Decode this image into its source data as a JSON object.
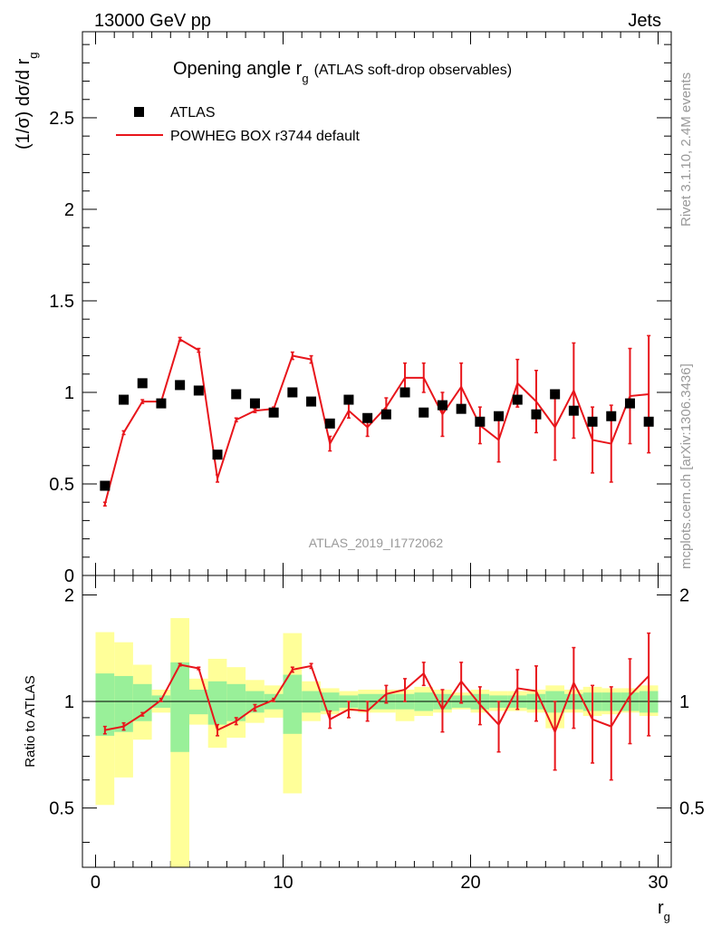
{
  "header": {
    "energy_label": "13000 GeV pp",
    "category_label": "Jets"
  },
  "side_text": {
    "rivet_label": "Rivet 3.1.10,  2.4M events",
    "mcplots_label": "mcplots.cern.ch [arXiv:1306.3436]"
  },
  "colors": {
    "data": "#000000",
    "mc": "#e8151b",
    "band_inner": "#99f099",
    "band_outer": "#ffff99",
    "watermark": "#999999"
  },
  "chart_data": [
    {
      "type": "scatter",
      "title_main": "Opening angle r",
      "title_sub": "g",
      "title_rest": "(ATLAS soft-drop observables)",
      "ylabel_main": "(1/σ) dσ/d r",
      "ylabel_sub": "g",
      "xlabel_main": "r",
      "xlabel_sub": "g",
      "analysis_label": "ATLAS_2019_I1772062",
      "xlim": [
        -0.7,
        30.7
      ],
      "ylim": [
        0,
        2.97
      ],
      "yticks": [
        0,
        0.5,
        1,
        1.5,
        2,
        2.5
      ],
      "ytick_labels": [
        "0",
        "0.5",
        "1",
        "1.5",
        "2",
        "2.5"
      ],
      "legend": [
        {
          "label": "ATLAS",
          "kind": "marker"
        },
        {
          "label": "POWHEG BOX r3744 default",
          "kind": "line"
        }
      ],
      "series": [
        {
          "name": "ATLAS",
          "x": [
            0.5,
            1.5,
            2.5,
            3.5,
            4.5,
            5.5,
            6.5,
            7.5,
            8.5,
            9.5,
            10.5,
            11.5,
            12.5,
            13.5,
            14.5,
            15.5,
            16.5,
            17.5,
            18.5,
            19.5,
            20.5,
            21.5,
            22.5,
            23.5,
            24.5,
            25.5,
            26.5,
            27.5,
            28.5,
            29.5
          ],
          "values": [
            0.49,
            0.96,
            1.05,
            0.94,
            1.04,
            1.01,
            0.66,
            0.99,
            0.94,
            0.89,
            1.0,
            0.95,
            0.83,
            0.96,
            0.86,
            0.88,
            1.0,
            0.89,
            0.93,
            0.91,
            0.84,
            0.87,
            0.96,
            0.88,
            0.99,
            0.9,
            0.84,
            0.87,
            0.94,
            0.84
          ]
        },
        {
          "name": "POWHEG BOX r3744 default",
          "x": [
            0.5,
            1.5,
            2.5,
            3.5,
            4.5,
            5.5,
            6.5,
            7.5,
            8.5,
            9.5,
            10.5,
            11.5,
            12.5,
            13.5,
            14.5,
            15.5,
            16.5,
            17.5,
            18.5,
            19.5,
            20.5,
            21.5,
            22.5,
            23.5,
            24.5,
            25.5,
            26.5,
            27.5,
            28.5,
            29.5
          ],
          "values": [
            0.39,
            0.78,
            0.95,
            0.95,
            1.29,
            1.23,
            0.53,
            0.85,
            0.9,
            0.91,
            1.2,
            1.18,
            0.72,
            0.9,
            0.81,
            0.92,
            1.08,
            1.08,
            0.88,
            1.03,
            0.82,
            0.74,
            1.05,
            0.95,
            0.81,
            1.01,
            0.74,
            0.72,
            0.98,
            0.99
          ],
          "errors": [
            0.01,
            0.01,
            0.01,
            0.01,
            0.01,
            0.01,
            0.02,
            0.01,
            0.01,
            0.01,
            0.02,
            0.02,
            0.04,
            0.04,
            0.05,
            0.05,
            0.08,
            0.08,
            0.12,
            0.13,
            0.1,
            0.12,
            0.13,
            0.17,
            0.18,
            0.26,
            0.18,
            0.21,
            0.26,
            0.32
          ]
        }
      ]
    },
    {
      "type": "ratio",
      "ylabel": "Ratio to ATLAS",
      "xlim": [
        -0.7,
        30.7
      ],
      "ylim": [
        0.34,
        2.27
      ],
      "reference_line": 1.0,
      "yticks": [
        0.5,
        1,
        2
      ],
      "ytick_labels": [
        "0.5",
        "1",
        "2"
      ],
      "xticks": [
        0,
        10,
        20,
        30
      ],
      "xtick_labels": [
        "0",
        "10",
        "20",
        "30"
      ],
      "bins": [
        0,
        1,
        2,
        3,
        4,
        5,
        6,
        7,
        8,
        9,
        10,
        11,
        12,
        13,
        14,
        15,
        16,
        17,
        18,
        19,
        20,
        21,
        22,
        23,
        24,
        25,
        26,
        27,
        28,
        29,
        30
      ],
      "band_inner_low": [
        0.8,
        0.82,
        0.88,
        0.96,
        0.72,
        0.92,
        0.86,
        0.88,
        0.93,
        0.95,
        0.81,
        0.93,
        0.94,
        0.96,
        0.95,
        0.95,
        0.95,
        0.94,
        0.95,
        0.96,
        0.95,
        0.96,
        0.96,
        0.95,
        0.93,
        0.95,
        0.94,
        0.94,
        0.94,
        0.93
      ],
      "band_inner_high": [
        1.2,
        1.18,
        1.12,
        1.04,
        1.29,
        1.08,
        1.14,
        1.12,
        1.07,
        1.05,
        1.19,
        1.07,
        1.06,
        1.04,
        1.05,
        1.05,
        1.05,
        1.06,
        1.05,
        1.04,
        1.05,
        1.04,
        1.04,
        1.05,
        1.07,
        1.05,
        1.06,
        1.06,
        1.06,
        1.07
      ],
      "band_outer_low": [
        0.51,
        0.61,
        0.78,
        0.93,
        0.2,
        0.86,
        0.74,
        0.79,
        0.87,
        0.9,
        0.55,
        0.88,
        0.92,
        0.94,
        0.93,
        0.93,
        0.88,
        0.91,
        0.93,
        0.95,
        0.93,
        0.94,
        0.94,
        0.93,
        0.84,
        0.93,
        0.91,
        0.92,
        0.93,
        0.91
      ],
      "band_outer_high": [
        1.57,
        1.47,
        1.27,
        1.08,
        1.72,
        1.16,
        1.32,
        1.25,
        1.15,
        1.11,
        1.56,
        1.14,
        1.09,
        1.07,
        1.08,
        1.08,
        1.08,
        1.1,
        1.08,
        1.06,
        1.08,
        1.07,
        1.07,
        1.08,
        1.11,
        1.08,
        1.1,
        1.09,
        1.09,
        1.11
      ],
      "ratio_x": [
        0.5,
        1.5,
        2.5,
        3.5,
        4.5,
        5.5,
        6.5,
        7.5,
        8.5,
        9.5,
        10.5,
        11.5,
        12.5,
        13.5,
        14.5,
        15.5,
        16.5,
        17.5,
        18.5,
        19.5,
        20.5,
        21.5,
        22.5,
        23.5,
        24.5,
        25.5,
        26.5,
        27.5,
        28.5,
        29.5
      ],
      "ratio_values": [
        0.83,
        0.85,
        0.92,
        1.01,
        1.27,
        1.24,
        0.83,
        0.88,
        0.96,
        1.01,
        1.23,
        1.26,
        0.89,
        0.95,
        0.94,
        1.05,
        1.08,
        1.2,
        0.95,
        1.14,
        0.98,
        0.86,
        1.09,
        1.07,
        0.82,
        1.13,
        0.89,
        0.85,
        1.04,
        1.18
      ],
      "ratio_errors": [
        0.02,
        0.02,
        0.01,
        0.01,
        0.01,
        0.01,
        0.03,
        0.02,
        0.02,
        0.01,
        0.02,
        0.02,
        0.05,
        0.05,
        0.06,
        0.06,
        0.08,
        0.09,
        0.13,
        0.15,
        0.12,
        0.14,
        0.14,
        0.19,
        0.18,
        0.29,
        0.22,
        0.25,
        0.28,
        0.38
      ]
    }
  ]
}
